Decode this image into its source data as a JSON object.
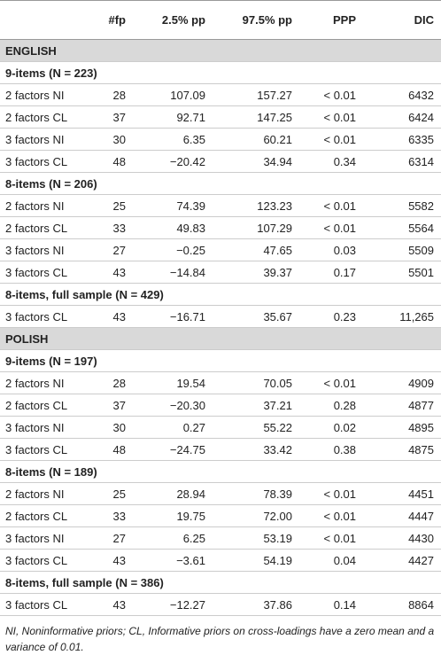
{
  "table": {
    "columns": [
      "#fp",
      "2.5% pp",
      "97.5% pp",
      "PPP",
      "DIC"
    ],
    "sections": [
      {
        "name": "ENGLISH",
        "groups": [
          {
            "label": "9-items (N = 223)",
            "rows": [
              [
                "2 factors NI",
                "28",
                "107.09",
                "157.27",
                "< 0.01",
                "6432"
              ],
              [
                "2 factors CL",
                "37",
                "92.71",
                "147.25",
                "< 0.01",
                "6424"
              ],
              [
                "3 factors NI",
                "30",
                "6.35",
                "60.21",
                "< 0.01",
                "6335"
              ],
              [
                "3 factors CL",
                "48",
                "−20.42",
                "34.94",
                "0.34",
                "6314"
              ]
            ]
          },
          {
            "label": "8-items (N = 206)",
            "rows": [
              [
                "2 factors NI",
                "25",
                "74.39",
                "123.23",
                "< 0.01",
                "5582"
              ],
              [
                "2 factors CL",
                "33",
                "49.83",
                "107.29",
                "< 0.01",
                "5564"
              ],
              [
                "3 factors NI",
                "27",
                "−0.25",
                "47.65",
                "0.03",
                "5509"
              ],
              [
                "3 factors CL",
                "43",
                "−14.84",
                "39.37",
                "0.17",
                "5501"
              ]
            ]
          },
          {
            "label": "8-items, full sample (N = 429)",
            "rows": [
              [
                "3 factors CL",
                "43",
                "−16.71",
                "35.67",
                "0.23",
                "11,265"
              ]
            ]
          }
        ]
      },
      {
        "name": "POLISH",
        "groups": [
          {
            "label": "9-items (N = 197)",
            "rows": [
              [
                "2 factors NI",
                "28",
                "19.54",
                "70.05",
                "< 0.01",
                "4909"
              ],
              [
                "2 factors CL",
                "37",
                "−20.30",
                "37.21",
                "0.28",
                "4877"
              ],
              [
                "3 factors NI",
                "30",
                "0.27",
                "55.22",
                "0.02",
                "4895"
              ],
              [
                "3 factors CL",
                "48",
                "−24.75",
                "33.42",
                "0.38",
                "4875"
              ]
            ]
          },
          {
            "label": "8-items (N = 189)",
            "rows": [
              [
                "2 factors NI",
                "25",
                "28.94",
                "78.39",
                "< 0.01",
                "4451"
              ],
              [
                "2 factors CL",
                "33",
                "19.75",
                "72.00",
                "< 0.01",
                "4447"
              ],
              [
                "3 factors NI",
                "27",
                "6.25",
                "53.19",
                "< 0.01",
                "4430"
              ],
              [
                "3 factors CL",
                "43",
                "−3.61",
                "54.19",
                "0.04",
                "4427"
              ]
            ]
          },
          {
            "label": "8-items, full sample (N = 386)",
            "rows": [
              [
                "3 factors CL",
                "43",
                "−12.27",
                "37.86",
                "0.14",
                "8864"
              ]
            ]
          }
        ]
      }
    ],
    "note": "NI, Noninformative priors; CL, Informative priors on cross-loadings have a zero mean and a variance of 0.01."
  }
}
